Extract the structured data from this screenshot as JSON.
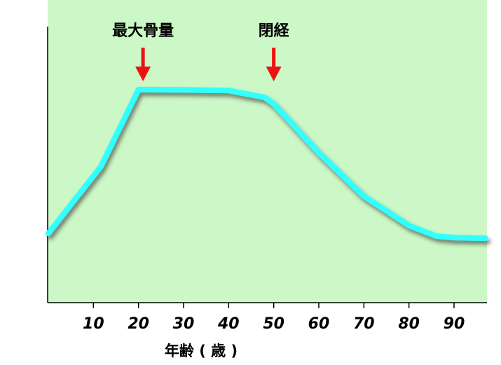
{
  "chart_data": {
    "type": "line",
    "x": [
      0,
      11.7,
      20,
      30,
      40,
      48,
      50,
      60,
      70,
      80,
      86,
      90,
      97
    ],
    "values": [
      22.9,
      45.1,
      70.4,
      70.3,
      70.1,
      67.8,
      65.7,
      49.5,
      35.2,
      25.5,
      22,
      21.5,
      21.3
    ],
    "color": "#33ffff",
    "background": "#ccf7c6",
    "xlim": [
      0,
      97
    ],
    "xticks": [
      10,
      20,
      30,
      40,
      50,
      60,
      70,
      80,
      90
    ],
    "ylim": [
      0,
      100
    ],
    "x_label": "年齢 ( 歳 )",
    "annotations": [
      {
        "text": "最大骨量",
        "x": 21,
        "color": "#ee1111"
      },
      {
        "text": "閉経",
        "x": 50,
        "color": "#ee1111"
      }
    ]
  }
}
